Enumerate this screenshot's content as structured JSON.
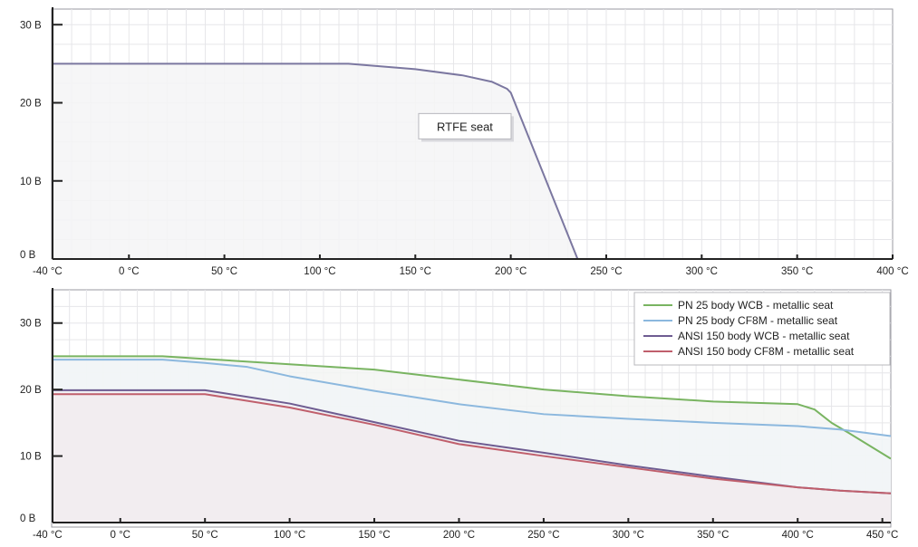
{
  "chart_data": [
    {
      "type": "area",
      "title": "",
      "xlabel": "",
      "ylabel": "",
      "xlim": [
        -40,
        400
      ],
      "ylim": [
        0,
        32
      ],
      "x_ticks": [
        {
          "value": -40,
          "label": "-40 °C"
        },
        {
          "value": 0,
          "label": "0 °C"
        },
        {
          "value": 50,
          "label": "50 °C"
        },
        {
          "value": 100,
          "label": "100 °C"
        },
        {
          "value": 150,
          "label": "150 °C"
        },
        {
          "value": 200,
          "label": "200 °C"
        },
        {
          "value": 250,
          "label": "250 °C"
        },
        {
          "value": 300,
          "label": "300 °C"
        },
        {
          "value": 350,
          "label": "350 °C"
        },
        {
          "value": 400,
          "label": "400 °C"
        }
      ],
      "y_ticks": [
        {
          "value": 0,
          "label": "0 B"
        },
        {
          "value": 10,
          "label": "10 B"
        },
        {
          "value": 20,
          "label": "20 B"
        },
        {
          "value": 30,
          "label": "30 B"
        }
      ],
      "grid": true,
      "series": [
        {
          "color": "#7b77a0",
          "fill": "#f4f4f6",
          "x": [
            -40,
            115,
            150,
            175,
            190,
            198,
            200,
            235
          ],
          "y": [
            25,
            25,
            24.3,
            23.5,
            22.7,
            21.8,
            21.3,
            0
          ]
        }
      ],
      "annotations": [
        {
          "text": "RTFE seat",
          "x": 175,
          "y": 17
        }
      ]
    },
    {
      "type": "area",
      "title": "",
      "xlabel": "",
      "ylabel": "",
      "xlim": [
        -40,
        455
      ],
      "ylim": [
        0,
        35
      ],
      "x_ticks": [
        {
          "value": -40,
          "label": "-40 °C"
        },
        {
          "value": 0,
          "label": "0 °C"
        },
        {
          "value": 50,
          "label": "50 °C"
        },
        {
          "value": 100,
          "label": "100 °C"
        },
        {
          "value": 150,
          "label": "150 °C"
        },
        {
          "value": 200,
          "label": "200 °C"
        },
        {
          "value": 250,
          "label": "250 °C"
        },
        {
          "value": 300,
          "label": "300 °C"
        },
        {
          "value": 350,
          "label": "350 °C"
        },
        {
          "value": 400,
          "label": "400 °C"
        },
        {
          "value": 450,
          "label": "450 °C"
        }
      ],
      "y_ticks": [
        {
          "value": 0,
          "label": "0 B"
        },
        {
          "value": 10,
          "label": "10 B"
        },
        {
          "value": 20,
          "label": "20 B"
        },
        {
          "value": 30,
          "label": "30 B"
        }
      ],
      "grid": true,
      "legend": "top-right",
      "series": [
        {
          "name": "PN 25 body WCB - metallic seat",
          "color": "#79b461",
          "fill": "#f3f5f3",
          "x": [
            -40,
            25,
            50,
            100,
            150,
            200,
            250,
            300,
            350,
            400,
            410,
            420,
            430,
            455
          ],
          "y": [
            25,
            25,
            24.6,
            23.8,
            23,
            21.5,
            20,
            19,
            18.2,
            17.8,
            17,
            15,
            13.5,
            9.6
          ]
        },
        {
          "name": "PN 25 body CF8M - metallic seat",
          "color": "#8cb8de",
          "fill": "#f1f4f7",
          "x": [
            -40,
            25,
            50,
            75,
            100,
            150,
            200,
            250,
            300,
            350,
            400,
            425,
            455
          ],
          "y": [
            24.5,
            24.5,
            24,
            23.4,
            22,
            19.8,
            17.8,
            16.3,
            15.6,
            15,
            14.5,
            14,
            13
          ]
        },
        {
          "name": "ANSI 150 body WCB - metallic seat",
          "color": "#6e5c91",
          "fill": "#f0eef3",
          "x": [
            -40,
            50,
            100,
            150,
            200,
            250,
            300,
            350,
            400,
            425,
            455
          ],
          "y": [
            19.9,
            19.9,
            17.9,
            15.1,
            12.3,
            10.5,
            8.6,
            6.9,
            5.3,
            4.8,
            4.4
          ]
        },
        {
          "name": "ANSI 150 body CF8M - metallic seat",
          "color": "#c05f6c",
          "fill": "#f2ecee",
          "x": [
            -40,
            50,
            100,
            150,
            200,
            250,
            300,
            350,
            400,
            425,
            455
          ],
          "y": [
            19.3,
            19.3,
            17.3,
            14.7,
            11.8,
            10,
            8.3,
            6.6,
            5.3,
            4.8,
            4.4
          ]
        }
      ]
    }
  ]
}
